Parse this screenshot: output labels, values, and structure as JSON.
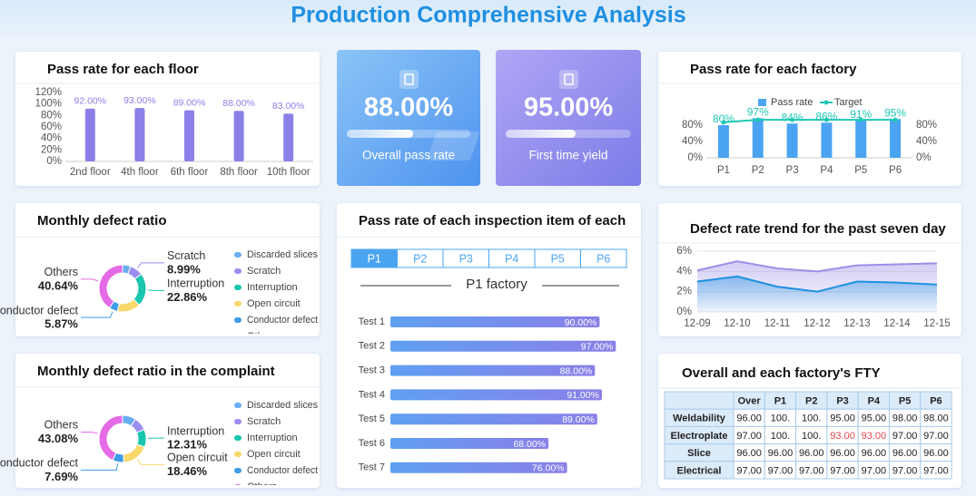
{
  "title": "Production Comprehensive Analysis",
  "kpis": [
    {
      "value": "88.00%",
      "label": "Overall pass rate"
    },
    {
      "value": "95.00%",
      "label": "First time yield"
    }
  ],
  "chart_data": [
    {
      "type": "bar",
      "title": "Pass rate for each floor",
      "categories": [
        "2nd floor",
        "4th floor",
        "6th floor",
        "8th floor",
        "10th floor"
      ],
      "values": [
        92,
        93,
        89,
        88,
        83
      ],
      "value_labels": [
        "92.00%",
        "93.00%",
        "89.00%",
        "88.00%",
        "83.00%"
      ],
      "color": "#8b80e8",
      "ylim": [
        0,
        120
      ],
      "yticks": [
        {
          "value": 0,
          "label": "0%"
        },
        {
          "value": 20,
          "label": "20%"
        },
        {
          "value": 40,
          "label": "40%"
        },
        {
          "value": 60,
          "label": "60%"
        },
        {
          "value": 80,
          "label": "80%"
        },
        {
          "value": 100,
          "label": "100%"
        },
        {
          "value": 120,
          "label": "120%"
        }
      ]
    },
    {
      "type": "combo",
      "title": "Pass rate for each factory",
      "categories": [
        "P1",
        "P2",
        "P3",
        "P4",
        "P5",
        "P6"
      ],
      "series": [
        {
          "name": "Pass rate",
          "type": "bar",
          "color": "#4ba4f2",
          "label_color": "#1ec8b4",
          "values": [
            80,
            97,
            84,
            86,
            91,
            95
          ],
          "value_labels": [
            "80%",
            "97%",
            "84%",
            "86%",
            "91%",
            "95%"
          ]
        },
        {
          "name": "Target",
          "type": "line",
          "axis": "y2",
          "color": "#1ec8b4",
          "values": [
            87,
            93,
            93,
            93,
            93,
            93
          ]
        }
      ],
      "ylim": [
        0,
        100
      ],
      "yticks": [
        {
          "value": 0,
          "label": "0%"
        },
        {
          "value": 40,
          "label": "40%"
        },
        {
          "value": 80,
          "label": "80%"
        }
      ],
      "y2lim": [
        0,
        100
      ],
      "y2ticks": [
        {
          "value": 0,
          "label": "0%"
        },
        {
          "value": 40,
          "label": "40%"
        },
        {
          "value": 80,
          "label": "80%"
        }
      ]
    },
    {
      "type": "donut",
      "title": "Monthly defect ratio",
      "categories": [
        "Discarded slices",
        "Scratch",
        "Interruption",
        "Open circuit",
        "Conductor defect",
        "Others"
      ],
      "values": [
        5.64,
        8.99,
        22.86,
        16,
        5.87,
        40.64
      ],
      "value_labels": [
        null,
        "8.99%",
        "22.86%",
        null,
        "5.87%",
        "40.64%"
      ],
      "colors": [
        "#6aaef0",
        "#9a8ef0",
        "#18c6ae",
        "#f8d86b",
        "#3d9be9",
        "#e46ae6"
      ]
    },
    {
      "type": "donut",
      "title": "Monthly defect ratio in the complaint",
      "categories": [
        "Discarded slices",
        "Scratch",
        "Interruption",
        "Open circuit",
        "Conductor defect",
        "Others"
      ],
      "values": [
        9.23,
        9.23,
        12.31,
        18.46,
        7.69,
        43.08
      ],
      "value_labels": [
        null,
        null,
        "12.31%",
        "18.46%",
        "7.69%",
        "43.08%"
      ],
      "colors": [
        "#6aaef0",
        "#9a8ef0",
        "#18c6ae",
        "#f8d86b",
        "#3d9be9",
        "#e46ae6"
      ]
    },
    {
      "type": "hbar",
      "title": "Pass rate of each inspection item of each",
      "tabs": [
        "P1",
        "P2",
        "P3",
        "P4",
        "P5",
        "P6"
      ],
      "selected_tab": 0,
      "subtitle": "P1 factory",
      "categories": [
        "Test 1",
        "Test 2",
        "Test 3",
        "Test 4",
        "Test 5",
        "Test 6",
        "Test 7"
      ],
      "values": [
        90,
        97,
        88,
        91,
        89,
        68,
        76
      ],
      "value_labels": [
        "90.00%",
        "97.00%",
        "88.00%",
        "91.00%",
        "89.00%",
        "68.00%",
        "76.00%"
      ],
      "color": "#6f8ef0",
      "xlim": [
        0,
        100
      ]
    },
    {
      "type": "line",
      "title": "Defect rate trend for the past seven day",
      "categories": [
        "12-09",
        "12-10",
        "12-11",
        "12-12",
        "12-13",
        "12-14",
        "12-15"
      ],
      "series": [
        {
          "color": "#9b8fe8",
          "values": [
            4.1,
            5.0,
            4.3,
            4.0,
            4.6,
            4.7,
            4.8
          ]
        },
        {
          "color": "#1e90e0",
          "values": [
            3.0,
            3.5,
            2.5,
            2.0,
            3.0,
            2.9,
            2.7
          ]
        }
      ],
      "area": true,
      "grid": true,
      "ylim": [
        0,
        6
      ],
      "yticks": [
        {
          "value": 0,
          "label": "0%"
        },
        {
          "value": 2,
          "label": "2%"
        },
        {
          "value": 4,
          "label": "4%"
        },
        {
          "value": 6,
          "label": "6%"
        }
      ]
    }
  ],
  "table": {
    "title": "Overall and each factory's FTY",
    "header": [
      "Over",
      "P1",
      "P2",
      "P3",
      "P4",
      "P5",
      "P6"
    ],
    "rows": [
      {
        "label": "Weldability",
        "cells": [
          "96.00",
          "100.",
          "100.",
          "95.00",
          "95.00",
          "98.00",
          "98.00"
        ]
      },
      {
        "label": "Electroplate",
        "cells": [
          "97.00",
          "100.",
          "100.",
          {
            "text": "93.00",
            "color": "#e0474c"
          },
          {
            "text": "93.00",
            "color": "#e0474c"
          },
          "97.00",
          "97.00"
        ]
      },
      {
        "label": "Slice",
        "cells": [
          "96.00",
          "96.00",
          "96.00",
          "96.00",
          "96.00",
          "96.00",
          "96.00"
        ]
      },
      {
        "label": "Electrical",
        "cells": [
          "97.00",
          "97.00",
          "97.00",
          "97.00",
          "97.00",
          "97.00",
          "97.00"
        ]
      }
    ]
  }
}
